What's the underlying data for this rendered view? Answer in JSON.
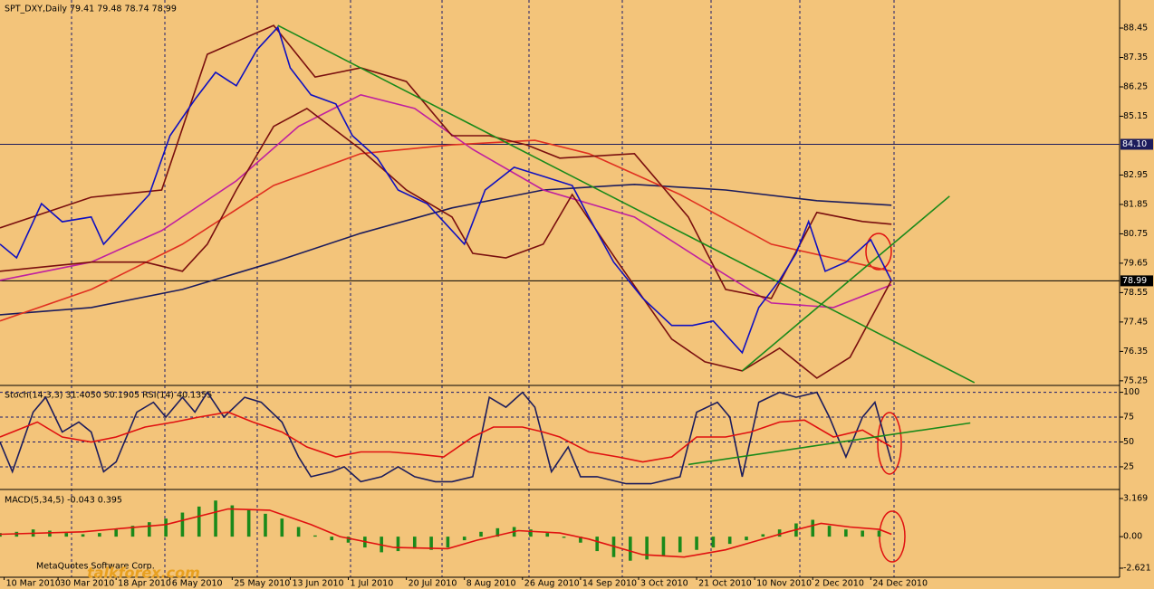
{
  "chart_data": [
    {
      "type": "line",
      "title": "SPT_DXY,Daily  79.41 79.48 78.74 78.99",
      "xlim": [
        0,
        270
      ],
      "ylim": [
        75.11,
        89.5
      ],
      "yticks": [
        88.45,
        87.35,
        86.25,
        85.15,
        82.95,
        81.85,
        80.75,
        79.65,
        78.55,
        77.45,
        76.35,
        75.25
      ],
      "hlines": [
        {
          "value": 84.1,
          "label": "84.10",
          "color": "#1c1c5c"
        },
        {
          "value": 78.99,
          "label": "78.99",
          "color": "#000000"
        }
      ],
      "series": [
        {
          "color": "#1c1c5c",
          "x": [
            0,
            22,
            44,
            66,
            87,
            109,
            131,
            153,
            175,
            197,
            215
          ],
          "values": [
            77.72,
            77.99,
            78.67,
            79.69,
            80.77,
            81.72,
            82.39,
            82.6,
            82.39,
            81.99,
            81.82
          ]
        },
        {
          "color": "#e03020",
          "x": [
            0,
            22,
            44,
            66,
            87,
            109,
            129,
            142,
            164,
            186,
            215
          ],
          "values": [
            77.49,
            78.67,
            80.36,
            82.56,
            83.75,
            84.08,
            84.25,
            83.75,
            82.22,
            80.36,
            79.35
          ]
        },
        {
          "color": "#c0209f",
          "x": [
            0,
            22,
            39,
            57,
            72,
            87,
            100,
            114,
            131,
            153,
            170,
            186,
            201,
            215
          ],
          "values": [
            79.01,
            79.69,
            80.87,
            82.73,
            84.77,
            85.95,
            85.44,
            83.91,
            82.39,
            81.38,
            79.69,
            78.16,
            77.99,
            78.84
          ]
        },
        {
          "color": "#7a0f0f",
          "x": [
            0,
            22,
            39,
            50,
            66,
            76,
            87,
            98,
            109,
            118,
            127,
            135,
            153,
            166,
            175,
            186,
            197,
            208,
            215
          ],
          "values": [
            80.97,
            82.12,
            82.39,
            87.47,
            88.55,
            86.62,
            86.96,
            86.45,
            84.42,
            84.42,
            84.08,
            83.58,
            83.75,
            81.38,
            78.67,
            78.33,
            81.55,
            81.21,
            81.11
          ]
        },
        {
          "color": "#7a0f0f",
          "x": [
            0,
            22,
            35,
            44,
            50,
            57,
            66,
            74,
            87,
            98,
            109,
            114,
            122,
            131,
            138,
            149,
            162,
            170,
            179,
            188,
            197,
            205,
            215
          ],
          "values": [
            79.35,
            79.69,
            79.69,
            79.35,
            80.36,
            82.39,
            84.77,
            85.44,
            83.91,
            82.39,
            81.38,
            80.02,
            79.85,
            80.36,
            82.22,
            79.69,
            76.81,
            75.96,
            75.62,
            76.47,
            75.35,
            76.13,
            79.01
          ]
        },
        {
          "color": "#1a8a1a",
          "x": [
            67,
            235
          ],
          "values": [
            88.55,
            75.18
          ]
        },
        {
          "color": "#1a8a1a",
          "x": [
            179,
            229
          ],
          "values": [
            75.62,
            82.16
          ]
        },
        {
          "color": "#1010c0",
          "x": [
            0,
            4,
            10,
            15,
            22,
            25,
            31,
            36,
            41,
            47,
            52,
            57,
            62,
            67,
            70,
            75,
            81,
            85,
            91,
            96,
            103,
            108,
            112,
            117,
            124,
            131,
            138,
            142,
            148,
            155,
            162,
            167,
            172,
            179,
            183,
            188,
            192,
            195,
            199,
            204,
            210,
            215
          ],
          "values": [
            80.36,
            79.85,
            81.88,
            81.2,
            81.38,
            80.36,
            81.38,
            82.22,
            84.42,
            85.78,
            86.79,
            86.29,
            87.64,
            88.48,
            86.96,
            85.95,
            85.61,
            84.42,
            83.58,
            82.39,
            81.88,
            81.04,
            80.36,
            82.39,
            83.24,
            82.9,
            82.56,
            81.38,
            79.69,
            78.34,
            77.32,
            77.32,
            77.49,
            76.3,
            77.99,
            79.01,
            80.02,
            81.21,
            79.35,
            79.69,
            80.53,
            78.99
          ]
        }
      ]
    },
    {
      "type": "line",
      "title": "Stoch(14,3,3) 31.4050 50.1905  RSI(14) 40.1355",
      "xlim": [
        0,
        270
      ],
      "ylim": [
        4,
        106
      ],
      "yticks": [
        100,
        75,
        50,
        25
      ],
      "grid": true,
      "series": [
        {
          "color": "#1c1c5c",
          "x": [
            0,
            3,
            8,
            11,
            15,
            19,
            22,
            25,
            28,
            33,
            37,
            40,
            44,
            47,
            50,
            54,
            59,
            63,
            68,
            72,
            75,
            80,
            83,
            87,
            92,
            96,
            100,
            105,
            109,
            114,
            118,
            122,
            126,
            129,
            133,
            137,
            140,
            144,
            151,
            157,
            164,
            168,
            173,
            176,
            179,
            183,
            188,
            192,
            197,
            200,
            204,
            208,
            211,
            215
          ],
          "values": [
            50,
            20,
            80,
            95,
            60,
            70,
            60,
            20,
            30,
            80,
            90,
            75,
            95,
            80,
            100,
            75,
            95,
            90,
            70,
            35,
            15,
            20,
            25,
            10,
            15,
            25,
            15,
            10,
            10,
            15,
            95,
            85,
            100,
            85,
            20,
            45,
            15,
            15,
            8,
            8,
            15,
            80,
            90,
            75,
            15,
            90,
            100,
            95,
            100,
            75,
            35,
            75,
            90,
            30
          ]
        },
        {
          "color": "#e01010",
          "x": [
            0,
            9,
            15,
            22,
            28,
            35,
            42,
            48,
            55,
            61,
            68,
            74,
            81,
            87,
            94,
            100,
            107,
            114,
            119,
            126,
            131,
            135,
            142,
            149,
            155,
            162,
            168,
            175,
            181,
            188,
            194,
            201,
            208,
            215
          ],
          "values": [
            55,
            70,
            55,
            50,
            55,
            65,
            70,
            75,
            80,
            70,
            60,
            45,
            35,
            40,
            40,
            38,
            35,
            55,
            65,
            65,
            60,
            55,
            40,
            35,
            30,
            35,
            55,
            55,
            60,
            70,
            72,
            55,
            62,
            45
          ]
        },
        {
          "color": "#1a8a1a",
          "x": [
            166,
            234
          ],
          "values": [
            27.3,
            69.1
          ]
        }
      ]
    },
    {
      "type": "bar",
      "title": "MACD(5,34,5) -0.043 0.395",
      "xlim": [
        0,
        270
      ],
      "ylim": [
        -3.3,
        3.77
      ],
      "yticks": [
        3.169,
        {
          "value": 0,
          "label": "0.00"
        },
        -2.621
      ],
      "xticks": [
        {
          "value": 1,
          "label": "10 Mar 2010"
        },
        {
          "value": 14,
          "label": "30 Mar 2010"
        },
        {
          "value": 28,
          "label": "18 Apr 2010"
        },
        {
          "value": 41,
          "label": "6 May 2010"
        },
        {
          "value": 56,
          "label": "25 May 2010"
        },
        {
          "value": 70,
          "label": "13 Jun 2010"
        },
        {
          "value": 84,
          "label": "1 Jul 2010"
        },
        {
          "value": 98,
          "label": "20 Jul 2010"
        },
        {
          "value": 112,
          "label": "8 Aug 2010"
        },
        {
          "value": 126,
          "label": "26 Aug 2010"
        },
        {
          "value": 140,
          "label": "14 Sep 2010"
        },
        {
          "value": 154,
          "label": "3 Oct 2010"
        },
        {
          "value": 168,
          "label": "21 Oct 2010"
        },
        {
          "value": 182,
          "label": "10 Nov 2010"
        },
        {
          "value": 196,
          "label": "2 Dec 2010"
        },
        {
          "value": 210,
          "label": "24 Dec 2010"
        }
      ],
      "annotations": [
        "MetaQuotes Software Corp.",
        "talkforex.com"
      ],
      "series": [
        {
          "type": "bar",
          "color": "#1a8a1a",
          "x": [
            0,
            4,
            8,
            12,
            16,
            20,
            24,
            28,
            32,
            36,
            40,
            44,
            48,
            52,
            56,
            60,
            64,
            68,
            72,
            76,
            80,
            84,
            88,
            92,
            96,
            100,
            104,
            108,
            112,
            116,
            120,
            124,
            128,
            132,
            136,
            140,
            144,
            148,
            152,
            156,
            160,
            164,
            168,
            172,
            176,
            180,
            184,
            188,
            192,
            196,
            200,
            204,
            208,
            212
          ],
          "values": [
            0.3,
            0.4,
            0.6,
            0.5,
            0.3,
            0.2,
            0.3,
            0.6,
            0.9,
            1.2,
            1.5,
            2.0,
            2.5,
            3.0,
            2.6,
            2.2,
            1.9,
            1.5,
            0.8,
            0.1,
            -0.3,
            -0.5,
            -0.9,
            -1.3,
            -1.2,
            -1.0,
            -1.1,
            -0.9,
            -0.3,
            0.4,
            0.7,
            0.8,
            0.6,
            0.3,
            -0.1,
            -0.5,
            -1.2,
            -1.7,
            -2.0,
            -1.9,
            -1.6,
            -1.3,
            -1.1,
            -0.9,
            -0.6,
            -0.3,
            0.2,
            0.6,
            1.1,
            1.4,
            0.9,
            0.6,
            0.5,
            0.5
          ]
        },
        {
          "type": "line",
          "color": "#e01010",
          "x": [
            0,
            20,
            40,
            55,
            65,
            75,
            82,
            95,
            108,
            115,
            125,
            135,
            142,
            155,
            165,
            175,
            182,
            190,
            198,
            205,
            212,
            215
          ],
          "values": [
            0.2,
            0.4,
            1.0,
            2.3,
            2.2,
            1.0,
            0.0,
            -0.9,
            -1.0,
            -0.3,
            0.5,
            0.3,
            -0.2,
            -1.5,
            -1.7,
            -1.1,
            -0.4,
            0.4,
            1.1,
            0.8,
            0.6,
            0.2
          ]
        }
      ]
    }
  ]
}
